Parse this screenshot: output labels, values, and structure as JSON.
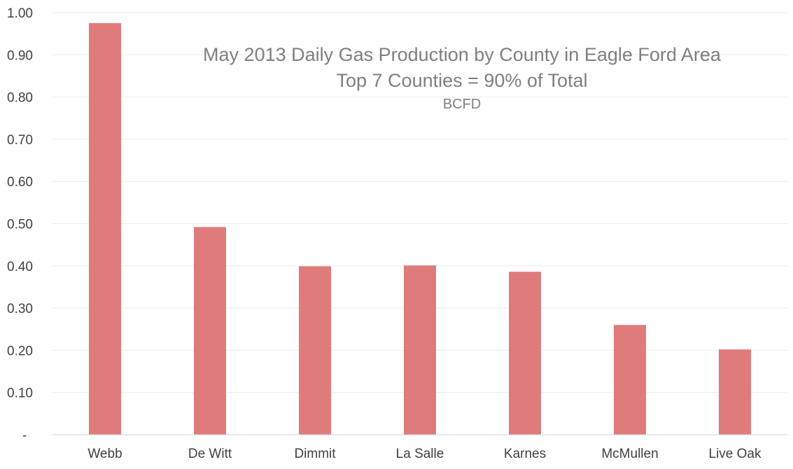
{
  "chart_data": {
    "type": "bar",
    "title": [
      "May 2013 Daily Gas Production by County in Eagle Ford Area",
      "Top 7 Counties = 90% of Total"
    ],
    "subtitle": "BCFD",
    "xlabel": "",
    "ylabel": "",
    "categories": [
      "Webb",
      "De Witt",
      "Dimmit",
      "La Salle",
      "Karnes",
      "McMullen",
      "Live Oak"
    ],
    "values": [
      0.975,
      0.492,
      0.399,
      0.401,
      0.386,
      0.26,
      0.202
    ],
    "ylim": [
      0,
      1.0
    ],
    "yticks": [
      "-",
      "0.10",
      "0.20",
      "0.30",
      "0.40",
      "0.50",
      "0.60",
      "0.70",
      "0.80",
      "0.90",
      "1.00"
    ],
    "grid": true,
    "legend": "none",
    "bar_color": "#e07b7b"
  }
}
